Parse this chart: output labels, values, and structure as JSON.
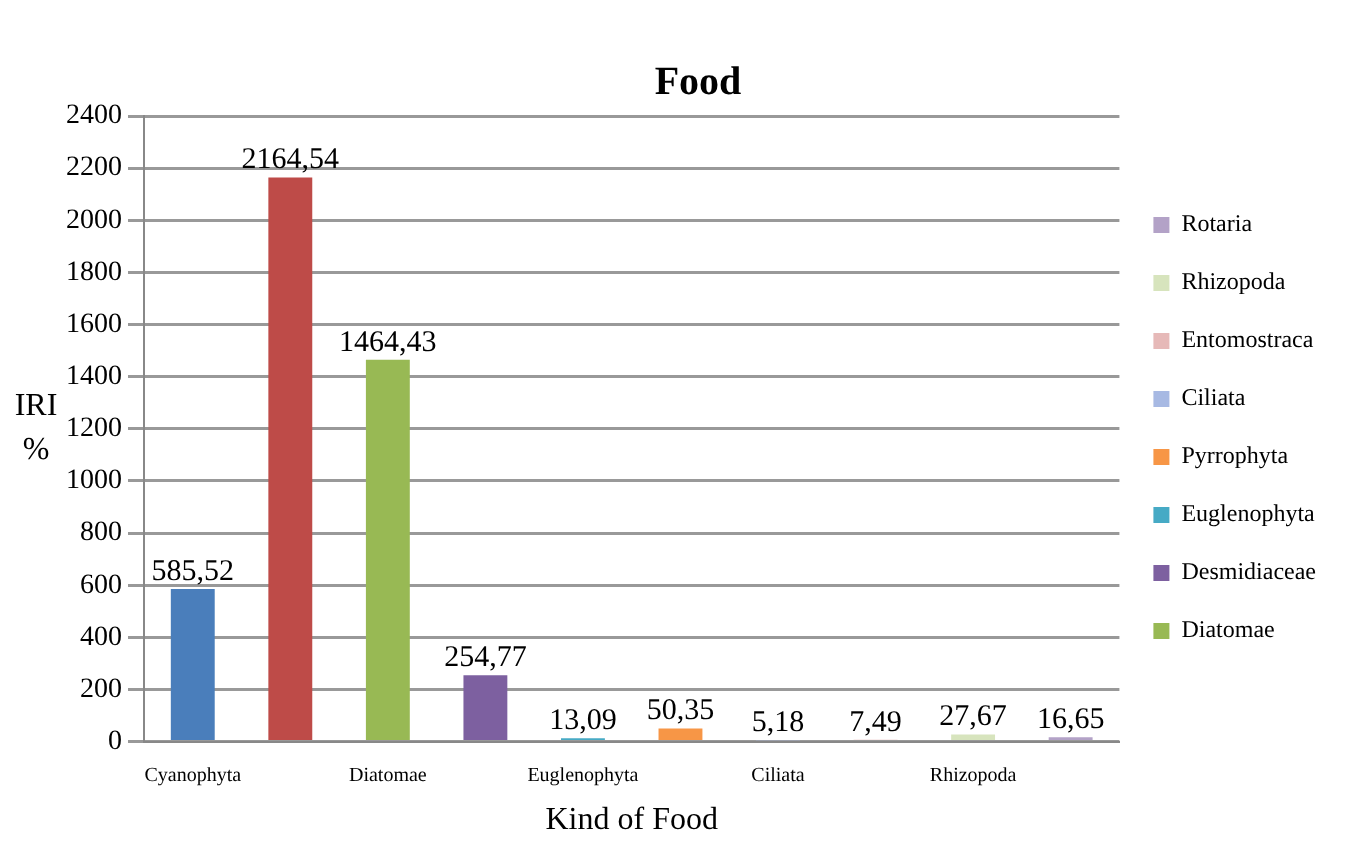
{
  "chart_data": {
    "type": "bar",
    "title": "Food",
    "xlabel": "Kind of Food",
    "ylabel": "IRI %",
    "categories": [
      "Cyanophyta",
      null,
      "Diatomae",
      null,
      "Euglenophyta",
      null,
      "Ciliata",
      null,
      "Rhizopoda",
      null
    ],
    "series": [
      {
        "color": "#4a7ebb",
        "values": [
          585.52,
          null,
          null,
          null,
          null,
          null,
          null,
          null,
          null,
          null
        ],
        "value_labels": [
          "585,52",
          null,
          null,
          null,
          null,
          null,
          null,
          null,
          null,
          null
        ]
      },
      {
        "color": "#be4b48",
        "values": [
          null,
          2164.54,
          null,
          null,
          null,
          null,
          null,
          null,
          null,
          null
        ],
        "value_labels": [
          null,
          "2164,54",
          null,
          null,
          null,
          null,
          null,
          null,
          null,
          null
        ]
      },
      {
        "name": "Diatomae",
        "color": "#98b954",
        "values": [
          null,
          null,
          1464.43,
          null,
          null,
          null,
          null,
          null,
          null,
          null
        ],
        "value_labels": [
          null,
          null,
          "1464,43",
          null,
          null,
          null,
          null,
          null,
          null,
          null
        ]
      },
      {
        "name": "Desmidiaceae",
        "color": "#7d60a0",
        "values": [
          null,
          null,
          null,
          254.77,
          null,
          null,
          null,
          null,
          null,
          null
        ],
        "value_labels": [
          null,
          null,
          null,
          "254,77",
          null,
          null,
          null,
          null,
          null,
          null
        ]
      },
      {
        "name": "Euglenophyta",
        "color": "#46aac5",
        "values": [
          null,
          null,
          null,
          null,
          13.09,
          null,
          null,
          null,
          null,
          null
        ],
        "value_labels": [
          null,
          null,
          null,
          null,
          "13,09",
          null,
          null,
          null,
          null,
          null
        ]
      },
      {
        "name": "Pyrrophyta",
        "color": "#f79646",
        "values": [
          null,
          null,
          null,
          null,
          null,
          50.35,
          null,
          null,
          null,
          null
        ],
        "value_labels": [
          null,
          null,
          null,
          null,
          null,
          "50,35",
          null,
          null,
          null,
          null
        ]
      },
      {
        "name": "Ciliata",
        "color": "#a7b9e3",
        "values": [
          null,
          null,
          null,
          null,
          null,
          null,
          5.18,
          null,
          null,
          null
        ],
        "value_labels": [
          null,
          null,
          null,
          null,
          null,
          null,
          "5,18",
          null,
          null,
          null
        ]
      },
      {
        "name": "Entomostraca",
        "color": "#e6b9b8",
        "values": [
          null,
          null,
          null,
          null,
          null,
          null,
          null,
          7.49,
          null,
          null
        ],
        "value_labels": [
          null,
          null,
          null,
          null,
          null,
          null,
          null,
          "7,49",
          null,
          null
        ]
      },
      {
        "name": "Rhizopoda",
        "color": "#d7e4bd",
        "values": [
          null,
          null,
          null,
          null,
          null,
          null,
          null,
          null,
          27.67,
          null
        ],
        "value_labels": [
          null,
          null,
          null,
          null,
          null,
          null,
          null,
          null,
          "27,67",
          null
        ]
      },
      {
        "name": "Rotaria",
        "color": "#b3a2c7",
        "values": [
          null,
          null,
          null,
          null,
          null,
          null,
          null,
          null,
          null,
          16.65
        ],
        "value_labels": [
          null,
          null,
          null,
          null,
          null,
          null,
          null,
          null,
          null,
          "16,65"
        ]
      }
    ],
    "ylim": [
      0,
      2400
    ],
    "yticks": [
      0,
      200,
      400,
      600,
      800,
      1000,
      1200,
      1400,
      1600,
      1800,
      2000,
      2200,
      2400
    ],
    "grid": "y",
    "legend": "right"
  }
}
